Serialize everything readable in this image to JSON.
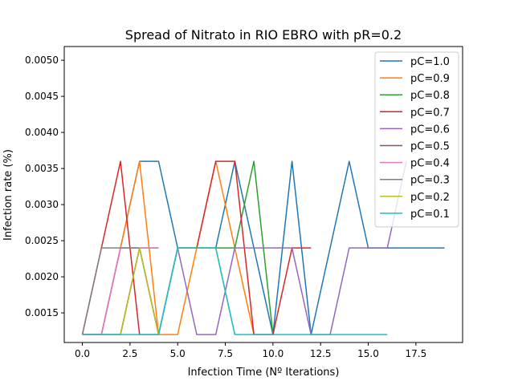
{
  "chart_data": {
    "type": "line",
    "title": "Spread of Nitrato in RIO EBRO with pR=0.2",
    "xlabel": "Infection Time (Nº Iterations)",
    "ylabel": "Infection rate (%)",
    "xlim": [
      -0.95,
      19.95
    ],
    "ylim": [
      0.00109,
      0.00519
    ],
    "xticks": [
      0.0,
      2.5,
      5.0,
      7.5,
      10.0,
      12.5,
      15.0,
      17.5
    ],
    "xtick_labels": [
      "0.0",
      "2.5",
      "5.0",
      "7.5",
      "10.0",
      "12.5",
      "15.0",
      "17.5"
    ],
    "yticks": [
      0.0015,
      0.002,
      0.0025,
      0.003,
      0.0035,
      0.004,
      0.0045,
      0.005
    ],
    "ytick_labels": [
      "0.0015",
      "0.0020",
      "0.0025",
      "0.0030",
      "0.0035",
      "0.0040",
      "0.0045",
      "0.0050"
    ],
    "grid": false,
    "legend_position": "top-right",
    "series": [
      {
        "name": "pC=1.0",
        "color": "#1f77b4",
        "x": [
          0,
          1,
          2,
          3,
          4,
          5,
          6,
          7,
          8,
          9,
          10,
          11,
          12,
          13,
          14,
          15,
          16,
          17,
          18,
          19
        ],
        "y": [
          0.0012,
          0.0012,
          0.0024,
          0.0036,
          0.0036,
          0.0024,
          0.0024,
          0.0024,
          0.0036,
          0.0024,
          0.0012,
          0.0036,
          0.0012,
          0.0024,
          0.0036,
          0.0024,
          0.0024,
          0.0024,
          0.0024,
          0.0024
        ]
      },
      {
        "name": "pC=0.9",
        "color": "#ff7f0e",
        "x": [
          0,
          1,
          2,
          3,
          4,
          5,
          6,
          7,
          8,
          9,
          10
        ],
        "y": [
          0.0012,
          0.0012,
          0.0024,
          0.0036,
          0.0012,
          0.0012,
          0.0024,
          0.0036,
          0.0024,
          0.0012,
          0.0012
        ]
      },
      {
        "name": "pC=0.8",
        "color": "#2ca02c",
        "x": [
          0,
          1,
          2,
          3,
          4,
          5,
          6,
          7,
          8,
          9,
          10
        ],
        "y": [
          0.0012,
          0.0012,
          0.0012,
          0.0024,
          0.0012,
          0.0024,
          0.0024,
          0.0024,
          0.0024,
          0.0036,
          0.0012
        ]
      },
      {
        "name": "pC=0.7",
        "color": "#d62728",
        "x": [
          0,
          1,
          2,
          3,
          4,
          5,
          6,
          7,
          8,
          9,
          10,
          11,
          12
        ],
        "y": [
          0.0012,
          0.0024,
          0.0036,
          0.0012,
          0.0012,
          0.0024,
          0.0024,
          0.0036,
          0.0036,
          0.0012,
          0.0012,
          0.0024,
          0.0024
        ]
      },
      {
        "name": "pC=0.6",
        "color": "#9467bd",
        "x": [
          0,
          1,
          2,
          3,
          4,
          5,
          6,
          7,
          8,
          9,
          10,
          11,
          12,
          13,
          14,
          15,
          16,
          17
        ],
        "y": [
          0.0012,
          0.0012,
          0.0024,
          0.0024,
          0.0012,
          0.0024,
          0.0012,
          0.0012,
          0.0024,
          0.0024,
          0.0024,
          0.0024,
          0.0012,
          0.0012,
          0.0024,
          0.0024,
          0.0024,
          0.0036
        ]
      },
      {
        "name": "pC=0.5",
        "color": "#8c564b",
        "x": [
          0,
          1,
          2,
          3,
          4
        ],
        "y": [
          0.0012,
          0.0012,
          0.0012,
          0.0024,
          0.0024
        ]
      },
      {
        "name": "pC=0.4",
        "color": "#e377c2",
        "x": [
          0,
          1,
          2,
          3,
          4
        ],
        "y": [
          0.0012,
          0.0012,
          0.0024,
          0.0024,
          0.0024
        ]
      },
      {
        "name": "pC=0.3",
        "color": "#7f7f7f",
        "x": [
          0,
          1,
          2,
          3,
          4
        ],
        "y": [
          0.0012,
          0.0024,
          0.0024,
          0.0024,
          0.0012
        ]
      },
      {
        "name": "pC=0.2",
        "color": "#bcbd22",
        "x": [
          0,
          1,
          2,
          3,
          4,
          5,
          6,
          7,
          8
        ],
        "y": [
          0.0012,
          0.0012,
          0.0012,
          0.0024,
          0.0012,
          0.0024,
          0.0024,
          0.0024,
          0.0012
        ]
      },
      {
        "name": "pC=0.1",
        "color": "#17becf",
        "x": [
          0,
          1,
          2,
          3,
          4,
          5,
          6,
          7,
          8,
          9,
          10,
          11,
          12,
          13,
          14,
          15,
          16
        ],
        "y": [
          0.0012,
          0.0012,
          0.0012,
          0.0012,
          0.0012,
          0.0024,
          0.0024,
          0.0024,
          0.0012,
          0.0012,
          0.0012,
          0.0012,
          0.0012,
          0.0012,
          0.0012,
          0.0012,
          0.0012
        ]
      }
    ]
  }
}
